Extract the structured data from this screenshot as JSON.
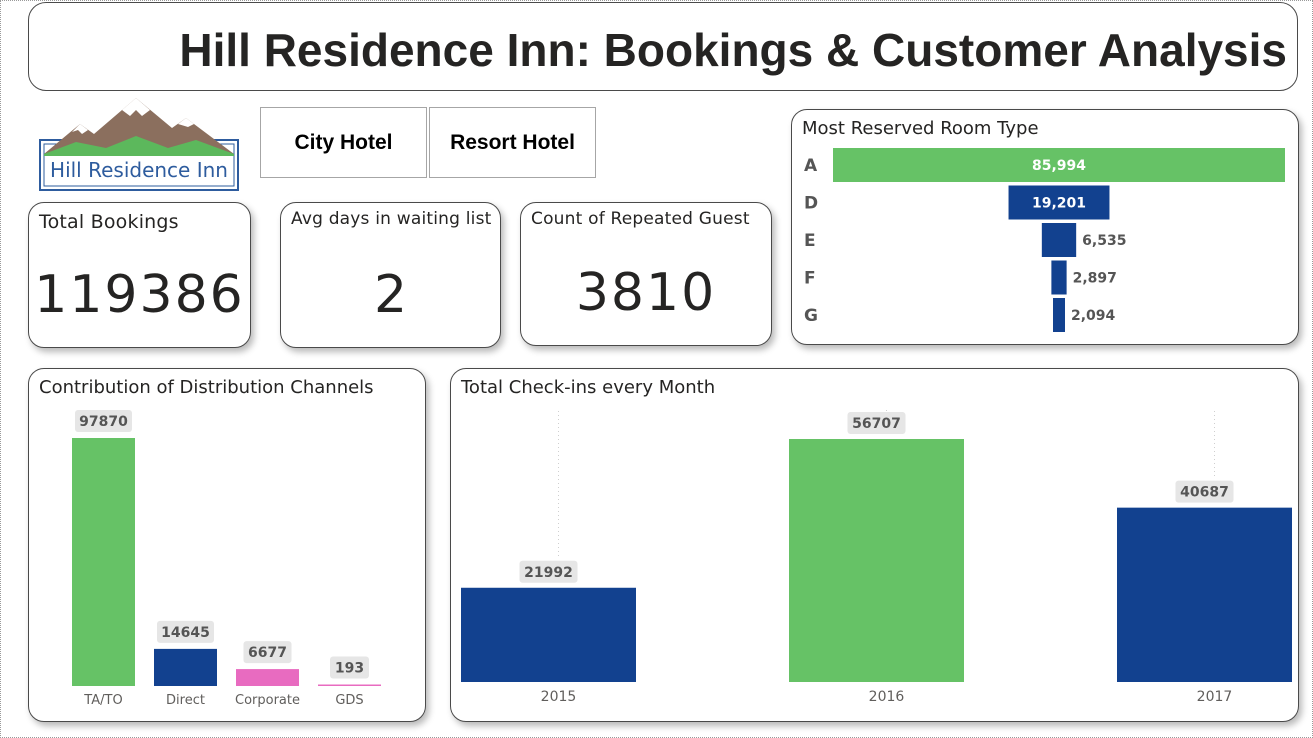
{
  "header": {
    "title": "Hill Residence Inn: Bookings & Customer Analysis"
  },
  "logo": {
    "text": "Hill Residence Inn",
    "colors": {
      "mountain": "#8b6f5e",
      "snow": "#ffffff",
      "grass": "#5cb85c",
      "border": "#2e5c9e",
      "text": "#2e5c9e"
    }
  },
  "slicers": [
    {
      "label": "City Hotel"
    },
    {
      "label": "Resort Hotel"
    }
  ],
  "kpis": {
    "total_bookings": {
      "label": "Total Bookings",
      "value": "119386"
    },
    "avg_waiting": {
      "label": "Avg days in waiting list",
      "value": "2"
    },
    "repeated_guests": {
      "label": "Count of Repeated Guest",
      "value": "3810"
    }
  },
  "colors": {
    "green": "#66c266",
    "blue": "#12418f",
    "pink": "#e86bc0",
    "label_bg": "#e6e6e6",
    "label_text": "#555555"
  },
  "chart_data": [
    {
      "id": "room_type",
      "type": "bar",
      "orientation": "horizontal-funnel",
      "title": "Most Reserved Room Type",
      "categories": [
        "A",
        "D",
        "E",
        "F",
        "G"
      ],
      "values": [
        85994,
        19201,
        6535,
        2897,
        2094
      ],
      "value_labels": [
        "85,994",
        "19,201",
        "6,535",
        "2,897",
        "2,094"
      ],
      "colors": [
        "#66c266",
        "#12418f",
        "#12418f",
        "#12418f",
        "#12418f"
      ]
    },
    {
      "id": "channels",
      "type": "bar",
      "title": "Contribution of Distribution Channels",
      "categories": [
        "TA/TO",
        "Direct",
        "Corporate",
        "GDS"
      ],
      "values": [
        97870,
        14645,
        6677,
        193
      ],
      "value_labels": [
        "97870",
        "14645",
        "6677",
        "193"
      ],
      "colors": [
        "#66c266",
        "#12418f",
        "#e86bc0",
        "#e86bc0"
      ]
    },
    {
      "id": "checkins",
      "type": "bar",
      "title": "Total Check-ins every Month",
      "categories": [
        "2015",
        "2016",
        "2017"
      ],
      "values": [
        21992,
        56707,
        40687
      ],
      "value_labels": [
        "21992",
        "56707",
        "40687"
      ],
      "colors": [
        "#12418f",
        "#66c266",
        "#12418f"
      ]
    }
  ]
}
